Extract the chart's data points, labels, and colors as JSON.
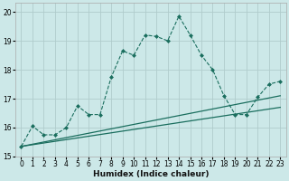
{
  "title": "",
  "xlabel": "Humidex (Indice chaleur)",
  "bg_color": "#cce8e8",
  "line_color": "#1a6e5e",
  "grid_color": "#b0cccc",
  "xlim": [
    -0.5,
    23.5
  ],
  "ylim": [
    15.0,
    20.3
  ],
  "yticks": [
    15,
    16,
    17,
    18,
    19,
    20
  ],
  "xticks": [
    0,
    1,
    2,
    3,
    4,
    5,
    6,
    7,
    8,
    9,
    10,
    11,
    12,
    13,
    14,
    15,
    16,
    17,
    18,
    19,
    20,
    21,
    22,
    23
  ],
  "line1_x": [
    0,
    1,
    2,
    3,
    4,
    5,
    6,
    7,
    8,
    9,
    10,
    11,
    12,
    13,
    14,
    15,
    16,
    17,
    18,
    19,
    20,
    21,
    22,
    23
  ],
  "line1_y": [
    15.35,
    16.05,
    15.75,
    15.75,
    16.0,
    16.75,
    16.45,
    16.45,
    17.75,
    18.65,
    18.5,
    19.2,
    19.15,
    19.0,
    19.85,
    19.2,
    18.5,
    18.0,
    17.1,
    16.45,
    16.45,
    17.05,
    17.5,
    17.6
  ],
  "line2_x": [
    0,
    23
  ],
  "line2_y": [
    15.35,
    16.7
  ],
  "line3_x": [
    0,
    23
  ],
  "line3_y": [
    15.35,
    17.1
  ],
  "tick_fontsize": 5.5,
  "xlabel_fontsize": 6.5
}
